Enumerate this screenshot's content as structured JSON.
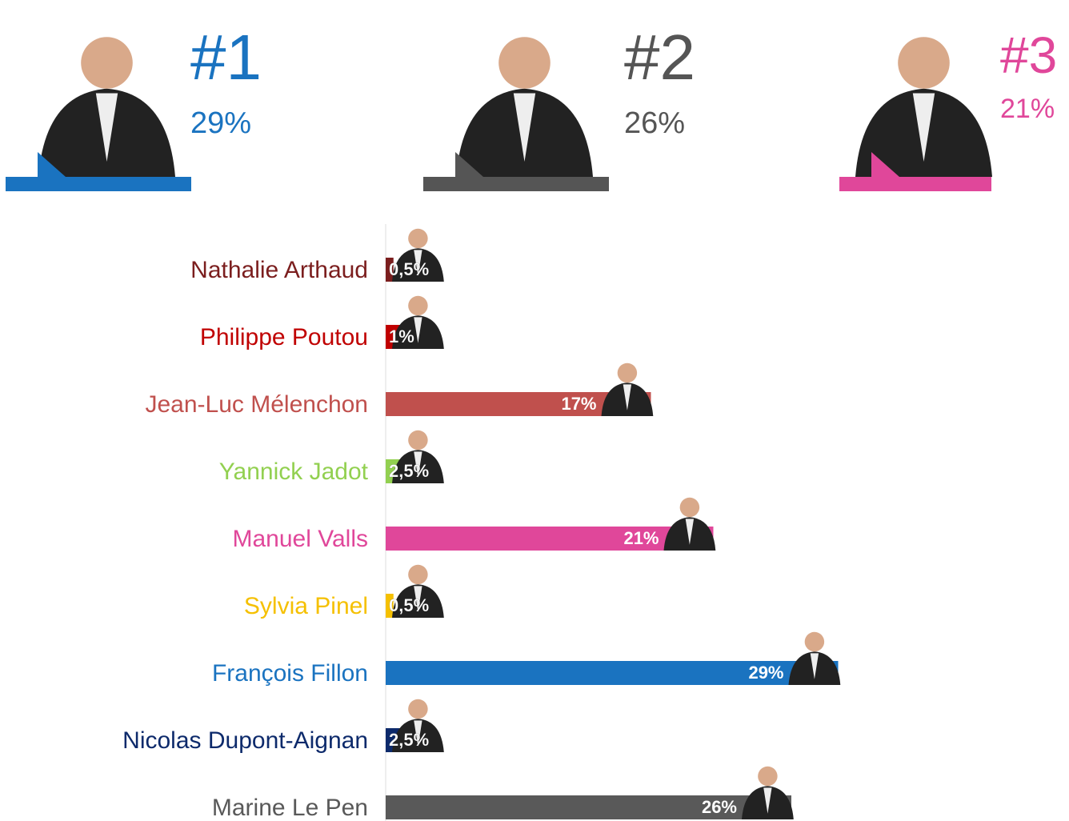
{
  "podium": [
    {
      "rank": "#1",
      "share": "29%",
      "color": "#1a73c0"
    },
    {
      "rank": "#2",
      "share": "26%",
      "color": "#555555"
    },
    {
      "rank": "#3",
      "share": "21%",
      "color": "#e0479a"
    }
  ],
  "chart_data": {
    "type": "bar",
    "categories": [
      "Nathalie Arthaud",
      "Philippe Poutou",
      "Jean-Luc Mélenchon",
      "Yannick Jadot",
      "Manuel Valls",
      "Sylvia Pinel",
      "François Fillon",
      "Nicolas Dupont-Aignan",
      "Marine Le Pen"
    ],
    "values": [
      0.5,
      1,
      17,
      2.5,
      21,
      0.5,
      29,
      2.5,
      26
    ],
    "value_labels": [
      "0,5%",
      "1%",
      "17%",
      "2,5%",
      "21%",
      "0,5%",
      "29%",
      "2,5%",
      "26%"
    ],
    "colors": [
      "#7b1e1e",
      "#c00000",
      "#c0504d",
      "#92d050",
      "#e0479a",
      "#f5c000",
      "#1a73c0",
      "#0d2a6b",
      "#595959"
    ]
  }
}
